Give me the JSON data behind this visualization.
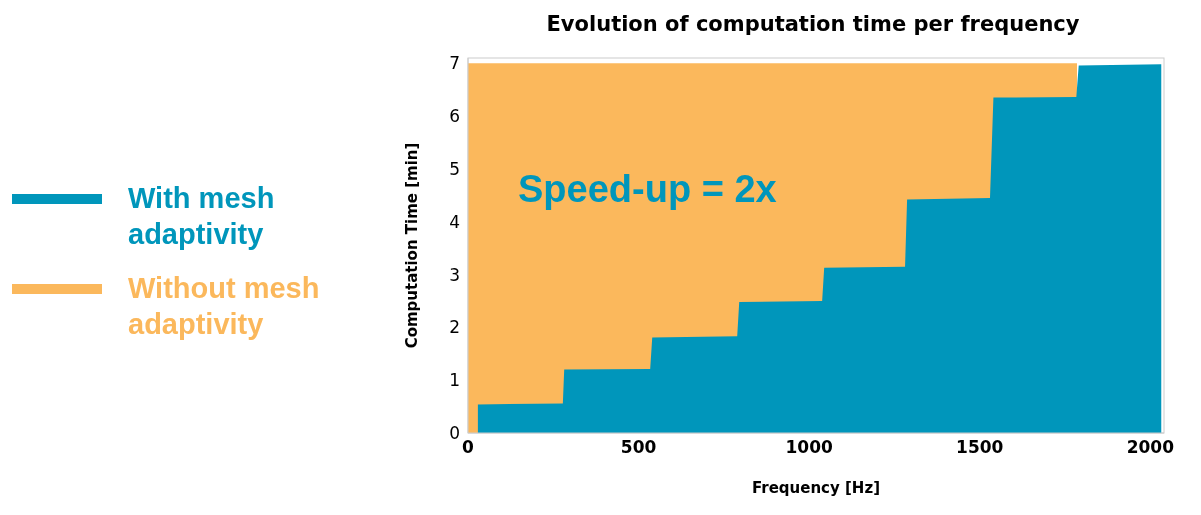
{
  "chart_data": {
    "type": "area",
    "title": "Evolution of computation time per frequency",
    "xlabel": "Frequency [Hz]",
    "ylabel": "Computation Time [min]",
    "annotations": [
      "Speed-up = 2x"
    ],
    "xlim": [
      0,
      2040
    ],
    "xticks": [
      0,
      500,
      1000,
      1500,
      2000
    ],
    "ylim": [
      0,
      7.1
    ],
    "yticks": [
      0,
      1,
      2,
      3,
      4,
      5,
      6,
      7
    ],
    "grid": false,
    "legend": "left",
    "series": [
      {
        "name": "Without mesh adaptivity",
        "color": "#fbb85c",
        "x": [
          0,
          500,
          1000,
          1500,
          1785
        ],
        "values": [
          7,
          7,
          7,
          7,
          7
        ]
      },
      {
        "name": "With mesh adaptivity",
        "color": "#0096bb",
        "x": [
          29,
          278,
          282,
          534,
          540,
          789,
          795,
          1038,
          1044,
          1281,
          1287,
          1530,
          1540,
          1783,
          1790,
          2032
        ],
        "values": [
          0.54,
          0.56,
          1.2,
          1.21,
          1.81,
          1.83,
          2.48,
          2.5,
          3.13,
          3.15,
          4.42,
          4.45,
          6.35,
          6.36,
          6.96,
          6.98
        ]
      }
    ]
  }
}
